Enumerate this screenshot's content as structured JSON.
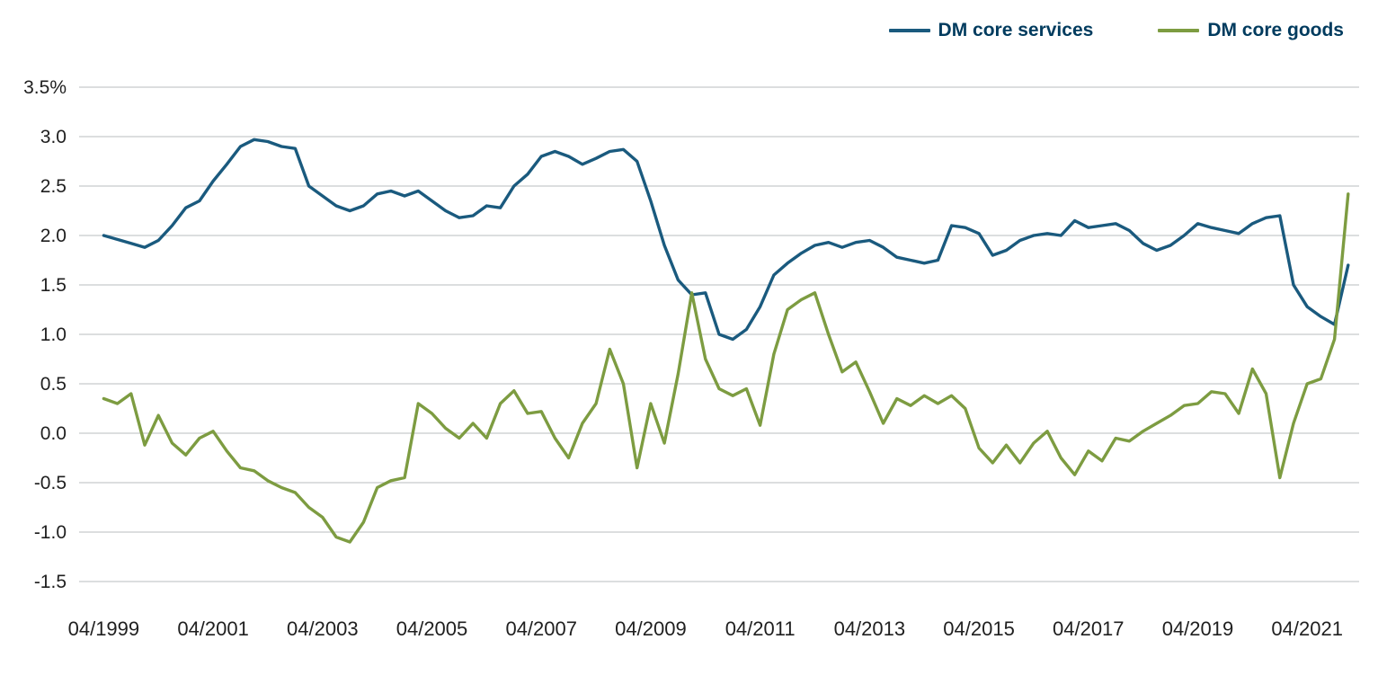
{
  "chart_data": {
    "type": "line",
    "title": "",
    "xlabel": "",
    "ylabel": "",
    "grid": true,
    "legend_position": "top-right",
    "grid_color": "#c8cacc",
    "tick_text_color": "#1f1f1f",
    "legend_text_color": "#003b5e",
    "x_axis": {
      "min": 1998.8,
      "max": 2022.2,
      "ticks": [
        {
          "label": "04/1999",
          "value": 1999.25
        },
        {
          "label": "04/2001",
          "value": 2001.25
        },
        {
          "label": "04/2003",
          "value": 2003.25
        },
        {
          "label": "04/2005",
          "value": 2005.25
        },
        {
          "label": "04/2007",
          "value": 2007.25
        },
        {
          "label": "04/2009",
          "value": 2009.25
        },
        {
          "label": "04/2011",
          "value": 2011.25
        },
        {
          "label": "04/2013",
          "value": 2013.25
        },
        {
          "label": "04/2015",
          "value": 2015.25
        },
        {
          "label": "04/2017",
          "value": 2017.25
        },
        {
          "label": "04/2019",
          "value": 2019.25
        },
        {
          "label": "04/2021",
          "value": 2021.25
        }
      ]
    },
    "y_axis": {
      "min": -1.5,
      "max": 3.5,
      "ticks": [
        {
          "label": "3.5%",
          "value": 3.5
        },
        {
          "label": "3.0",
          "value": 3.0
        },
        {
          "label": "2.5",
          "value": 2.5
        },
        {
          "label": "2.0",
          "value": 2.0
        },
        {
          "label": "1.5",
          "value": 1.5
        },
        {
          "label": "1.0",
          "value": 1.0
        },
        {
          "label": "0.5",
          "value": 0.5
        },
        {
          "label": "0.0",
          "value": 0.0
        },
        {
          "label": "-0.5",
          "value": -0.5
        },
        {
          "label": "-1.0",
          "value": -1.0
        },
        {
          "label": "-1.5",
          "value": -1.5
        }
      ]
    },
    "x_start": 1999.25,
    "x_step": 0.25,
    "series": [
      {
        "name": "DM core services",
        "color": "#1a5a7e",
        "values": [
          2.0,
          1.96,
          1.92,
          1.88,
          1.95,
          2.1,
          2.28,
          2.35,
          2.55,
          2.72,
          2.9,
          2.97,
          2.95,
          2.9,
          2.88,
          2.5,
          2.4,
          2.3,
          2.25,
          2.3,
          2.42,
          2.45,
          2.4,
          2.45,
          2.35,
          2.25,
          2.18,
          2.2,
          2.3,
          2.28,
          2.5,
          2.62,
          2.8,
          2.85,
          2.8,
          2.72,
          2.78,
          2.85,
          2.87,
          2.75,
          2.35,
          1.9,
          1.55,
          1.4,
          1.42,
          1.0,
          0.95,
          1.05,
          1.28,
          1.6,
          1.72,
          1.82,
          1.9,
          1.93,
          1.88,
          1.93,
          1.95,
          1.88,
          1.78,
          1.75,
          1.72,
          1.75,
          2.1,
          2.08,
          2.02,
          1.8,
          1.85,
          1.95,
          2.0,
          2.02,
          2.0,
          2.15,
          2.08,
          2.1,
          2.12,
          2.05,
          1.92,
          1.85,
          1.9,
          2.0,
          2.12,
          2.08,
          2.05,
          2.02,
          2.12,
          2.18,
          2.2,
          1.5,
          1.28,
          1.18,
          1.1,
          1.7
        ]
      },
      {
        "name": "DM core goods",
        "color": "#7d9c41",
        "values": [
          0.35,
          0.3,
          0.4,
          -0.12,
          0.18,
          -0.1,
          -0.22,
          -0.05,
          0.02,
          -0.18,
          -0.35,
          -0.38,
          -0.48,
          -0.55,
          -0.6,
          -0.75,
          -0.85,
          -1.05,
          -1.1,
          -0.9,
          -0.55,
          -0.48,
          -0.45,
          0.3,
          0.2,
          0.05,
          -0.05,
          0.1,
          -0.05,
          0.3,
          0.43,
          0.2,
          0.22,
          -0.05,
          -0.25,
          0.1,
          0.3,
          0.85,
          0.5,
          -0.35,
          0.3,
          -0.1,
          0.6,
          1.42,
          0.75,
          0.45,
          0.38,
          0.45,
          0.08,
          0.8,
          1.25,
          1.35,
          1.42,
          1.0,
          0.62,
          0.72,
          0.42,
          0.1,
          0.35,
          0.28,
          0.38,
          0.3,
          0.38,
          0.25,
          -0.15,
          -0.3,
          -0.12,
          -0.3,
          -0.1,
          0.02,
          -0.25,
          -0.42,
          -0.18,
          -0.28,
          -0.05,
          -0.08,
          0.02,
          0.1,
          0.18,
          0.28,
          0.3,
          0.42,
          0.4,
          0.2,
          0.65,
          0.4,
          -0.45,
          0.1,
          0.5,
          0.55,
          0.95,
          2.42
        ]
      }
    ]
  }
}
